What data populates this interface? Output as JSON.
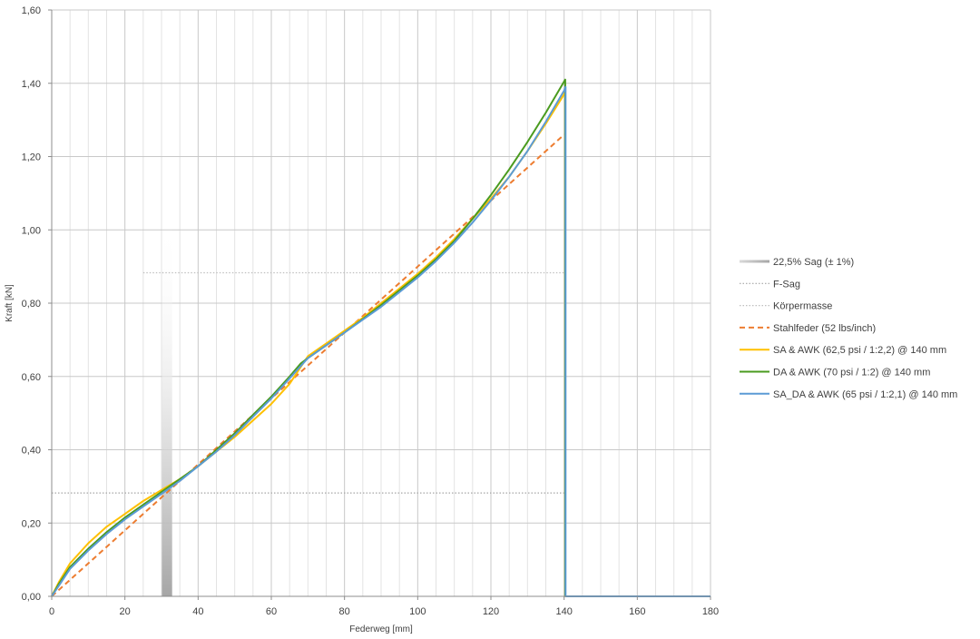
{
  "chart_data": {
    "type": "line",
    "xlabel": "Federweg [mm]",
    "ylabel": "Kraft [kN]",
    "xlim": [
      0,
      180
    ],
    "ylim": [
      0,
      1.6
    ],
    "xticks": [
      0,
      20,
      40,
      60,
      80,
      100,
      120,
      140,
      160,
      180
    ],
    "xtick_labels": [
      "0",
      "20",
      "40",
      "60",
      "80",
      "100",
      "120",
      "140",
      "160",
      "180"
    ],
    "yticks": [
      0,
      0.2,
      0.4,
      0.6,
      0.8,
      1.0,
      1.2,
      1.4,
      1.6
    ],
    "ytick_labels": [
      "0,00",
      "0,20",
      "0,40",
      "0,60",
      "0,80",
      "1,00",
      "1,20",
      "1,40",
      "1,60"
    ],
    "grid": true,
    "minor_x_grid_step": 5,
    "legend_position": "right",
    "sag_band": {
      "name": "22,5% Sag (± 1%)",
      "x_range": [
        30.1,
        32.9
      ],
      "color": "#a6a6a6"
    },
    "series": [
      {
        "name": "F-Sag",
        "style": "dotted",
        "color": "#a6a6a6",
        "x": [
          0,
          140
        ],
        "y": [
          0.282,
          0.282
        ]
      },
      {
        "name": "Körpermasse",
        "style": "dotted",
        "color": "#bfbfbf",
        "x": [
          25,
          140
        ],
        "y": [
          0.883,
          0.883
        ]
      },
      {
        "name": "Stahlfeder (52 lbs/inch)",
        "style": "dashed",
        "color": "#ed7d31",
        "x": [
          0,
          140
        ],
        "y": [
          0,
          1.26
        ]
      },
      {
        "name": "SA & AWK (62,5 psi / 1:2,2) @ 140 mm",
        "style": "solid",
        "color": "#ffc000",
        "x": [
          0,
          2,
          5,
          10,
          15,
          20,
          25,
          30,
          35,
          40,
          45,
          50,
          55,
          60,
          65,
          70,
          75,
          80,
          85,
          90,
          95,
          100,
          105,
          110,
          115,
          120,
          125,
          130,
          135,
          140,
          140.3,
          140.3,
          180
        ],
        "y": [
          0,
          0.04,
          0.09,
          0.145,
          0.19,
          0.225,
          0.26,
          0.29,
          0.32,
          0.355,
          0.395,
          0.435,
          0.48,
          0.525,
          0.58,
          0.655,
          0.69,
          0.725,
          0.76,
          0.8,
          0.84,
          0.88,
          0.925,
          0.975,
          1.03,
          1.085,
          1.145,
          1.215,
          1.29,
          1.37,
          1.38,
          0,
          0
        ]
      },
      {
        "name": "DA & AWK (70 psi / 1:2) @ 140 mm",
        "style": "solid",
        "color": "#4a9b1f",
        "x": [
          0,
          2,
          5,
          10,
          15,
          20,
          25,
          30,
          35,
          40,
          45,
          50,
          55,
          60,
          65,
          68,
          70,
          75,
          80,
          85,
          90,
          95,
          100,
          105,
          110,
          115,
          120,
          125,
          130,
          135,
          140,
          140.3,
          140.3
        ],
        "y": [
          0,
          0.035,
          0.08,
          0.13,
          0.175,
          0.215,
          0.25,
          0.285,
          0.32,
          0.355,
          0.4,
          0.445,
          0.495,
          0.545,
          0.6,
          0.635,
          0.65,
          0.685,
          0.72,
          0.757,
          0.795,
          0.835,
          0.875,
          0.92,
          0.97,
          1.03,
          1.095,
          1.165,
          1.24,
          1.32,
          1.405,
          1.41,
          0
        ]
      },
      {
        "name": "SA_DA & AWK (65 psi / 1:2,1) @ 140 mm",
        "style": "solid",
        "color": "#5b9bd5",
        "x": [
          0,
          2,
          5,
          10,
          15,
          20,
          25,
          30,
          35,
          40,
          45,
          50,
          55,
          60,
          65,
          70,
          75,
          80,
          85,
          90,
          95,
          100,
          105,
          110,
          115,
          120,
          125,
          130,
          135,
          140,
          140.4,
          140.4,
          180
        ],
        "y": [
          0,
          0.03,
          0.075,
          0.125,
          0.17,
          0.21,
          0.245,
          0.28,
          0.315,
          0.355,
          0.395,
          0.44,
          0.49,
          0.54,
          0.595,
          0.65,
          0.685,
          0.72,
          0.755,
          0.79,
          0.83,
          0.87,
          0.915,
          0.965,
          1.02,
          1.08,
          1.145,
          1.215,
          1.295,
          1.38,
          1.39,
          0,
          0
        ]
      }
    ]
  }
}
